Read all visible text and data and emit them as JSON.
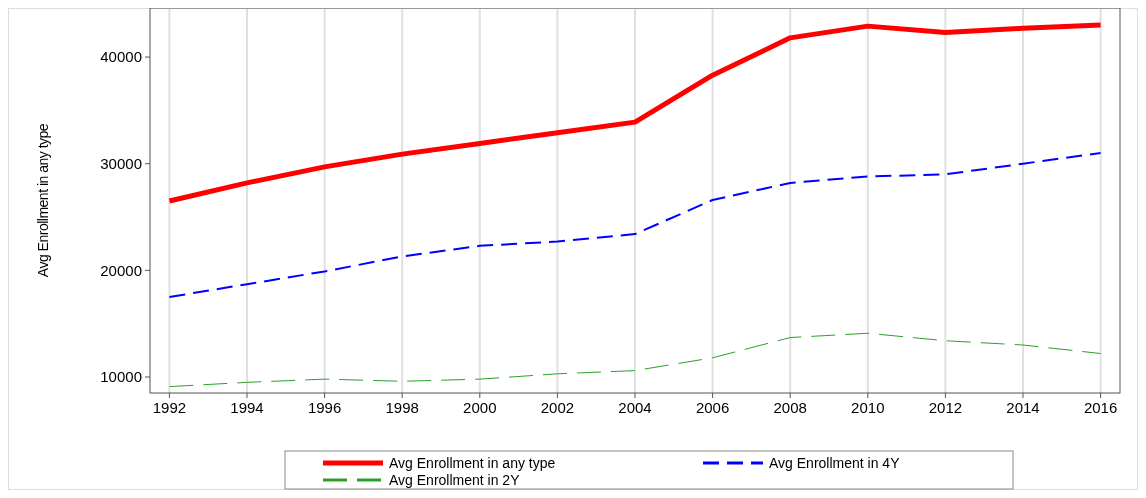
{
  "chart_data": {
    "type": "line",
    "ylabel": "Avg Enrollment in any  type",
    "x": [
      1992,
      1994,
      1996,
      1998,
      2000,
      2002,
      2004,
      2006,
      2008,
      2010,
      2012,
      2014,
      2016
    ],
    "xlim": [
      1991.5,
      2016.5
    ],
    "xticks": [
      1992,
      1994,
      1996,
      1998,
      2000,
      2002,
      2004,
      2006,
      2008,
      2010,
      2012,
      2014,
      2016
    ],
    "ylim": [
      8500,
      44600
    ],
    "yticks": [
      10000,
      20000,
      30000,
      40000
    ],
    "grid": "x",
    "legend": "bottom",
    "series": [
      {
        "name": "Avg Enrollment in any  type",
        "color": "#ff0000",
        "line_style": "solid",
        "values": [
          26500,
          28200,
          29700,
          30900,
          31900,
          32900,
          33900,
          38300,
          41800,
          42900,
          42300,
          42700,
          43000
        ]
      },
      {
        "name": "Avg Enrollment in 4Y",
        "color": "#0000ff",
        "line_style": "dashed",
        "values": [
          17500,
          18700,
          19900,
          21300,
          22300,
          22700,
          23400,
          26600,
          28200,
          28800,
          29000,
          30000,
          31000
        ]
      },
      {
        "name": "Avg Enrollment in 2Y",
        "color": "#2ca02c",
        "line_style": "dashed",
        "values": [
          9100,
          9500,
          9800,
          9600,
          9800,
          10300,
          10600,
          11800,
          13700,
          14100,
          13400,
          13000,
          12200
        ]
      }
    ]
  }
}
